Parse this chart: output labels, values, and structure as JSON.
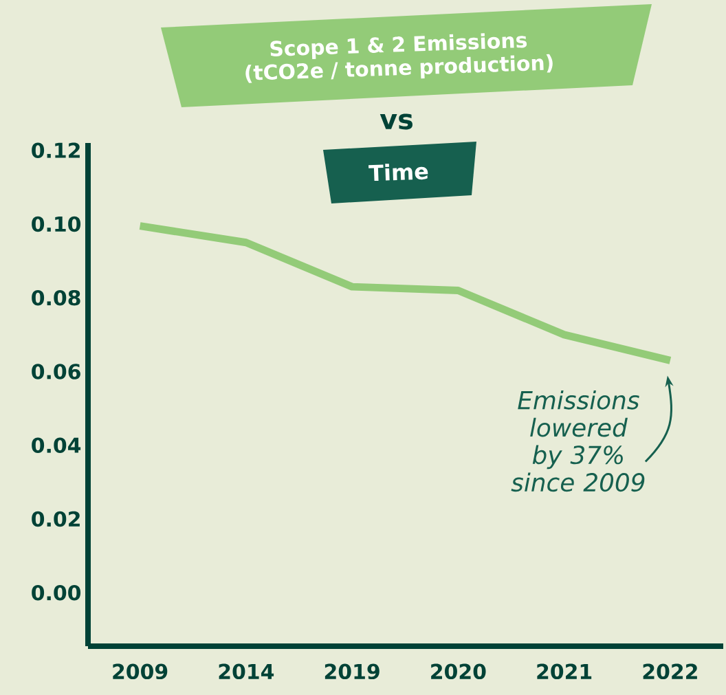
{
  "chart_data": {
    "type": "line",
    "title": "Scope 1 & 2 Emissions (tCO2e / tonne production)",
    "subtitle": "vs",
    "categories": [
      "2009",
      "2014",
      "2019",
      "2020",
      "2021",
      "2022"
    ],
    "series": [
      {
        "color": "#93cb78",
        "values": [
          0.0995,
          0.095,
          0.083,
          0.082,
          0.07,
          0.063
        ]
      }
    ],
    "ylim": [
      -0.0145,
      0.122
    ],
    "yticks": [
      {
        "value": 0,
        "label": "0.00"
      },
      0.02,
      0.04,
      0.06,
      0.08,
      {
        "value": 0.1,
        "label": "0.10"
      },
      0.12
    ],
    "line_style": "solid",
    "annotations": [
      "Time",
      {
        "text": "Emissions lowered by 37% since 2009",
        "x": "2022",
        "y": 0.063
      }
    ]
  }
}
